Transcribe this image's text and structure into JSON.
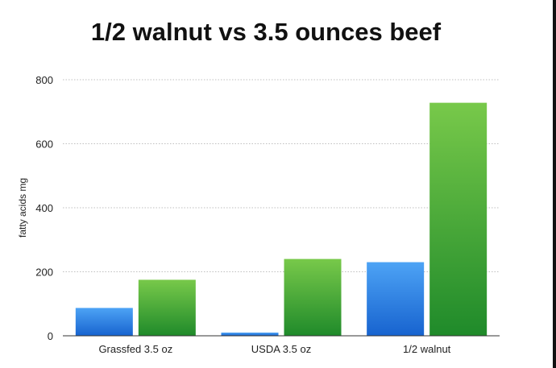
{
  "chart_data": {
    "type": "bar",
    "title": "1/2 walnut vs 3.5 ounces beef",
    "xlabel": "",
    "ylabel": "fatty acids mg",
    "categories": [
      "Grassfed 3.5 oz",
      "USDA 3.5 oz",
      "1/2 walnut"
    ],
    "series": [
      {
        "values": [
          87,
          10,
          230
        ],
        "color_top": "#4da3f5",
        "color_bottom": "#1763cf"
      },
      {
        "values": [
          175,
          240,
          728
        ],
        "color_top": "#78c94a",
        "color_bottom": "#1f8a2a"
      }
    ],
    "ylim": [
      0,
      800
    ],
    "yticks": [
      0,
      200,
      400,
      600,
      800
    ],
    "grid": true,
    "legend": "none"
  }
}
